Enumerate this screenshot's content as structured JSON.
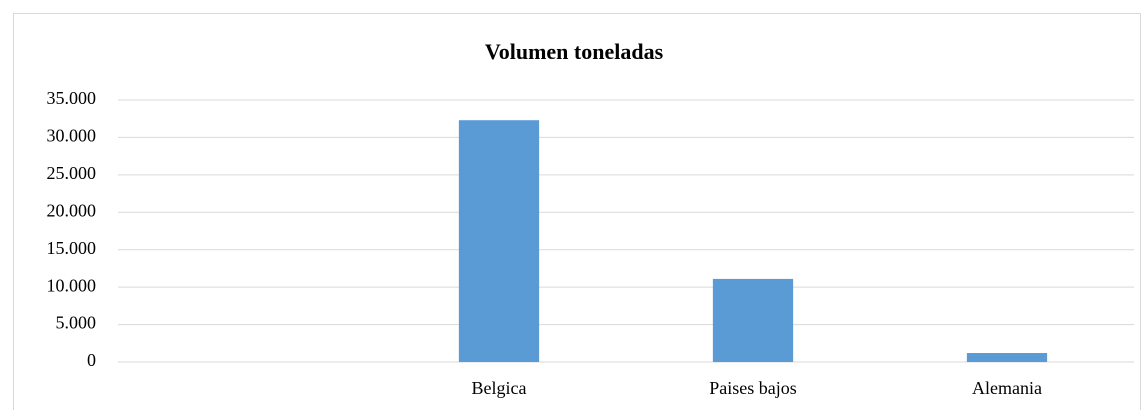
{
  "chart_data": {
    "type": "bar",
    "title": "Volumen toneladas",
    "categories": [
      null,
      "Belgica",
      "Paises bajos",
      "Alemania"
    ],
    "values": [
      null,
      32300,
      11100,
      1200
    ],
    "color": "#5b9bd5",
    "ylim": [
      0,
      35000
    ],
    "yticks": [
      0,
      {
        "value": 5000,
        "label": "5.000"
      },
      {
        "value": 10000,
        "label": "10.000"
      },
      {
        "value": 15000,
        "label": "15.000"
      },
      {
        "value": 20000,
        "label": "20.000"
      },
      {
        "value": 25000,
        "label": "25.000"
      },
      {
        "value": 30000,
        "label": "30.000"
      },
      {
        "value": 35000,
        "label": "35.000"
      }
    ],
    "grid": true
  }
}
